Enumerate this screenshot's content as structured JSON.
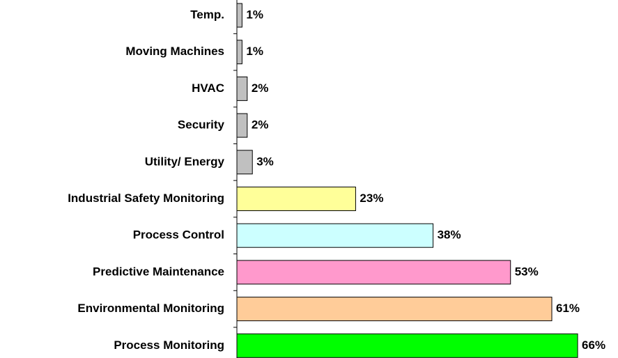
{
  "chart_data": {
    "type": "hbar",
    "categories": [
      "Temp.",
      "Moving Machines",
      "HVAC",
      "Security",
      "Utility/ Energy",
      "Industrial Safety Monitoring",
      "Process Control",
      "Predictive Maintenance",
      "Environmental Monitoring",
      "Process Monitoring"
    ],
    "values": [
      1,
      1,
      2,
      2,
      3,
      23,
      38,
      53,
      61,
      66
    ],
    "value_labels": [
      "1%",
      "1%",
      "2%",
      "2%",
      "3%",
      "23%",
      "38%",
      "53%",
      "61%",
      "66%"
    ],
    "colors": [
      "#c0c0c0",
      "#c0c0c0",
      "#c0c0c0",
      "#c0c0c0",
      "#c0c0c0",
      "#ffff99",
      "#ccffff",
      "#ff99cc",
      "#ffcc99",
      "#00ff00"
    ]
  }
}
